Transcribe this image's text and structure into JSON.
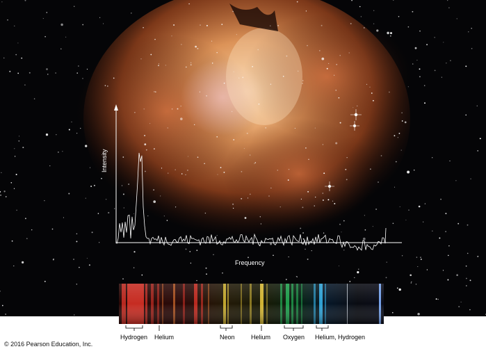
{
  "figure": {
    "y_axis_label": "Intensity",
    "x_axis_label": "Frequency",
    "copyright": "© 2016 Pearson Education, Inc."
  },
  "spectrum": {
    "element_labels": [
      "Hydrogen",
      "Helium",
      "Neon",
      "Helium",
      "Oxygen",
      "Helium, Hydrogen"
    ],
    "colors": {
      "red": "#c62c22",
      "orange": "#d36a2a",
      "yellow": "#cfb232",
      "green": "#1e9b4b",
      "cyan": "#2e9fd2",
      "dark": "#0a0c12"
    }
  },
  "nebula_colors": {
    "core": "#f3b27a",
    "mid": "#d0703a",
    "outer": "#8a3a1a",
    "space": "#050507"
  }
}
